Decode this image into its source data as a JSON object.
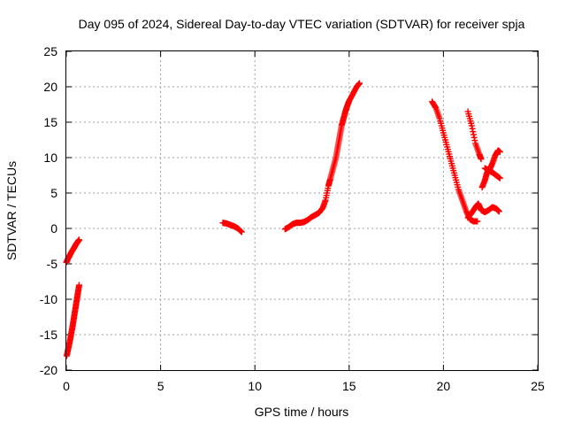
{
  "chart_data": {
    "type": "scatter",
    "title": "Day 095 of 2024, Sidereal Day-to-day VTEC variation (SDTVAR) for receiver spja",
    "xlabel": "GPS time / hours",
    "ylabel": "SDTVAR / TECUs",
    "xlim": [
      0,
      25
    ],
    "ylim": [
      -20,
      25
    ],
    "xticks": [
      0,
      5,
      10,
      15,
      20,
      25
    ],
    "yticks": [
      -20,
      -15,
      -10,
      -5,
      0,
      5,
      10,
      15,
      20,
      25
    ],
    "grid": true,
    "marker": "plus",
    "color": "#ff0000",
    "segments": [
      [
        [
          0.0,
          -4.8
        ],
        [
          0.1,
          -4.2
        ],
        [
          0.2,
          -3.7
        ],
        [
          0.3,
          -3.2
        ],
        [
          0.4,
          -2.8
        ],
        [
          0.5,
          -2.3
        ],
        [
          0.6,
          -1.9
        ],
        [
          0.68,
          -1.6
        ]
      ],
      [
        [
          0.02,
          -18.0
        ],
        [
          0.1,
          -17.0
        ],
        [
          0.18,
          -16.0
        ],
        [
          0.25,
          -15.0
        ],
        [
          0.32,
          -14.0
        ],
        [
          0.38,
          -13.0
        ],
        [
          0.44,
          -12.0
        ],
        [
          0.5,
          -11.0
        ],
        [
          0.56,
          -10.0
        ],
        [
          0.62,
          -9.0
        ],
        [
          0.68,
          -8.0
        ]
      ],
      [
        [
          8.3,
          0.8
        ],
        [
          8.5,
          0.7
        ],
        [
          8.7,
          0.5
        ],
        [
          8.9,
          0.3
        ],
        [
          9.1,
          0.0
        ],
        [
          9.3,
          -0.5
        ]
      ],
      [
        [
          11.6,
          -0.1
        ],
        [
          11.8,
          0.2
        ],
        [
          12.0,
          0.6
        ],
        [
          12.2,
          0.8
        ],
        [
          12.4,
          0.8
        ],
        [
          12.6,
          0.9
        ],
        [
          12.8,
          1.2
        ],
        [
          13.0,
          1.6
        ],
        [
          13.2,
          1.9
        ],
        [
          13.4,
          2.2
        ],
        [
          13.6,
          2.9
        ],
        [
          13.75,
          4.0
        ],
        [
          13.9,
          6.0
        ],
        [
          14.0,
          7.0
        ],
        [
          14.15,
          8.5
        ],
        [
          14.3,
          10.0
        ],
        [
          14.4,
          11.5
        ],
        [
          14.5,
          13.0
        ],
        [
          14.6,
          14.5
        ],
        [
          14.7,
          15.5
        ],
        [
          14.8,
          16.5
        ],
        [
          14.9,
          17.3
        ],
        [
          15.0,
          18.0
        ],
        [
          15.2,
          19.0
        ],
        [
          15.4,
          20.0
        ],
        [
          15.55,
          20.5
        ]
      ],
      [
        [
          19.4,
          17.9
        ],
        [
          19.6,
          17.0
        ],
        [
          19.8,
          15.5
        ],
        [
          20.0,
          13.5
        ],
        [
          20.2,
          11.5
        ],
        [
          20.4,
          9.5
        ],
        [
          20.6,
          7.5
        ],
        [
          20.8,
          5.5
        ],
        [
          21.0,
          4.0
        ],
        [
          21.2,
          2.5
        ],
        [
          21.4,
          1.3
        ],
        [
          21.6,
          1.0
        ],
        [
          21.8,
          1.0
        ]
      ],
      [
        [
          21.3,
          16.5
        ],
        [
          21.5,
          14.5
        ],
        [
          21.7,
          12.0
        ],
        [
          21.9,
          10.5
        ],
        [
          22.0,
          9.8
        ]
      ],
      [
        [
          21.3,
          1.5
        ],
        [
          21.5,
          2.2
        ],
        [
          21.7,
          3.0
        ],
        [
          21.85,
          3.5
        ],
        [
          22.0,
          2.6
        ],
        [
          22.2,
          2.3
        ],
        [
          22.4,
          2.6
        ],
        [
          22.6,
          3.0
        ],
        [
          22.8,
          2.8
        ],
        [
          22.95,
          2.4
        ]
      ],
      [
        [
          22.05,
          5.8
        ],
        [
          22.2,
          6.8
        ],
        [
          22.3,
          7.8
        ],
        [
          22.45,
          8.3
        ],
        [
          22.6,
          9.2
        ],
        [
          22.75,
          10.3
        ],
        [
          22.9,
          11.0
        ],
        [
          23.0,
          10.8
        ]
      ],
      [
        [
          22.2,
          8.5
        ],
        [
          22.4,
          8.2
        ],
        [
          22.6,
          7.9
        ],
        [
          22.8,
          7.5
        ],
        [
          23.0,
          7.1
        ]
      ]
    ]
  }
}
